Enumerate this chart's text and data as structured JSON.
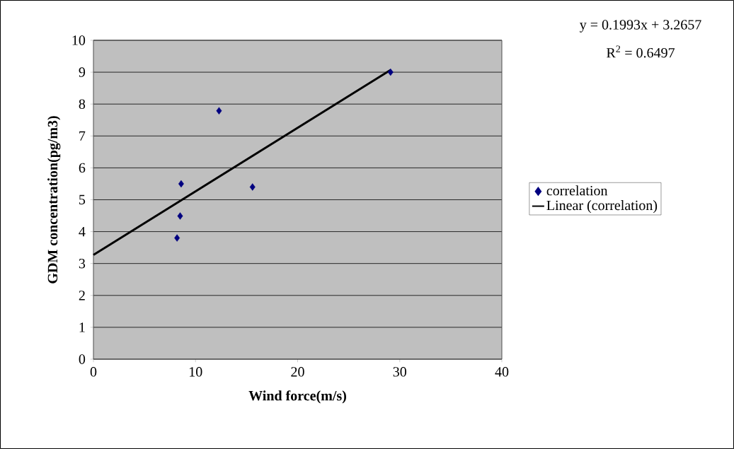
{
  "chart_data": {
    "type": "scatter",
    "xlabel": "Wind force(m/s)",
    "ylabel": "GDM concentration(pg/m3)",
    "xlim": [
      0,
      40
    ],
    "xticks": [
      0,
      10,
      20,
      30,
      40
    ],
    "ylim": [
      0,
      10
    ],
    "yticks": [
      0,
      1,
      2,
      3,
      4,
      5,
      6,
      7,
      8,
      9,
      10
    ],
    "grid": "y",
    "legend": "right",
    "series": [
      {
        "name": "correlation",
        "marker": "diamond",
        "color": "#000080",
        "x": [
          8.19,
          8.49,
          8.59,
          12.3,
          15.58,
          29.1
        ],
        "values": [
          3.8,
          4.49,
          5.5,
          7.79,
          5.4,
          9.0
        ]
      },
      {
        "name": "Linear (correlation)",
        "type": "line",
        "marker": "none",
        "line_style": "solid",
        "color": "#000000",
        "x": [
          0,
          29.1
        ],
        "values": [
          3.27,
          9.07
        ]
      }
    ],
    "annotations": [
      "y = 0.1993x + 3.2657",
      "R$^{2}$ = 0.6497"
    ]
  }
}
